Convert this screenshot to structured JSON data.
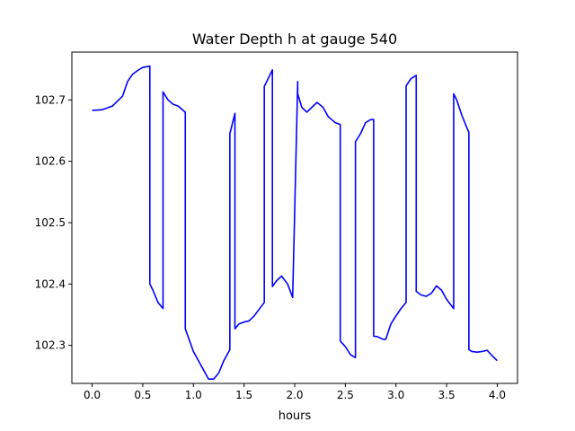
{
  "chart_data": {
    "type": "line",
    "title": "Water Depth h at gauge 540",
    "xlabel": "hours",
    "ylabel": "",
    "xlim": [
      -0.2,
      4.2
    ],
    "ylim": [
      102.238,
      102.778
    ],
    "xticks": [
      0.0,
      0.5,
      1.0,
      1.5,
      2.0,
      2.5,
      3.0,
      3.5,
      4.0
    ],
    "xtick_labels": [
      "0.0",
      "0.5",
      "1.0",
      "1.5",
      "2.0",
      "2.5",
      "3.0",
      "3.5",
      "4.0"
    ],
    "yticks": [
      102.3,
      102.4,
      102.5,
      102.6,
      102.7
    ],
    "ytick_labels": [
      "102.3",
      "102.4",
      "102.5",
      "102.6",
      "102.7"
    ],
    "grid": false,
    "line_color": "#0000ff",
    "series": [
      {
        "x": [
          0.0,
          0.1,
          0.2,
          0.3,
          0.35,
          0.4,
          0.45,
          0.5,
          0.57,
          0.57,
          0.6,
          0.65,
          0.7,
          0.7,
          0.75,
          0.8,
          0.85,
          0.92,
          0.92,
          1.0,
          1.1,
          1.15,
          1.2,
          1.25,
          1.3,
          1.36,
          1.36,
          1.41,
          1.41,
          1.45,
          1.5,
          1.55,
          1.6,
          1.7,
          1.7,
          1.78,
          1.78,
          1.82,
          1.87,
          1.93,
          1.98,
          2.03,
          2.03,
          2.07,
          2.12,
          2.17,
          2.22,
          2.28,
          2.33,
          2.4,
          2.45,
          2.45,
          2.5,
          2.55,
          2.6,
          2.6,
          2.65,
          2.7,
          2.75,
          2.78,
          2.78,
          2.82,
          2.87,
          2.9,
          2.95,
          3.0,
          3.05,
          3.1,
          3.1,
          3.15,
          3.2,
          3.2,
          3.25,
          3.3,
          3.35,
          3.4,
          3.45,
          3.5,
          3.57,
          3.57,
          3.6,
          3.65,
          3.72,
          3.72,
          3.75,
          3.8,
          3.85,
          3.9,
          3.95,
          4.0
        ],
        "values": [
          102.683,
          102.684,
          102.69,
          102.706,
          102.73,
          102.742,
          102.748,
          102.753,
          102.755,
          102.4,
          102.39,
          102.37,
          102.36,
          102.713,
          102.7,
          102.693,
          102.69,
          102.68,
          102.327,
          102.29,
          102.26,
          102.245,
          102.245,
          102.255,
          102.275,
          102.293,
          102.645,
          102.678,
          102.327,
          102.335,
          102.338,
          102.34,
          102.348,
          102.37,
          102.722,
          102.749,
          102.396,
          102.405,
          102.413,
          102.4,
          102.378,
          102.73,
          102.71,
          102.688,
          102.68,
          102.688,
          102.696,
          102.688,
          102.673,
          102.663,
          102.66,
          102.307,
          102.298,
          102.285,
          102.28,
          102.632,
          102.645,
          102.663,
          102.668,
          102.668,
          102.315,
          102.314,
          102.31,
          102.31,
          102.335,
          102.348,
          102.36,
          102.37,
          102.723,
          102.735,
          102.74,
          102.388,
          102.382,
          102.38,
          102.385,
          102.397,
          102.39,
          102.375,
          102.36,
          102.71,
          102.7,
          102.675,
          102.647,
          102.293,
          102.29,
          102.289,
          102.29,
          102.292,
          102.283,
          102.275
        ]
      }
    ]
  }
}
